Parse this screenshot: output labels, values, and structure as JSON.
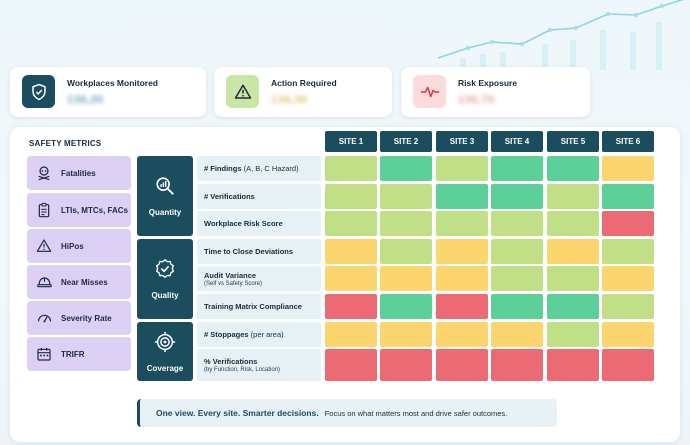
{
  "colors": {
    "dark_teal": "#1b4d5e",
    "lavender": "#ddd0f5",
    "label_bg": "#e6f1f6",
    "status": {
      "G": "#5dcf98",
      "L": "#c0df86",
      "Y": "#fdd56e",
      "R": "#ec6a74"
    }
  },
  "kpis": [
    {
      "title": "Workplaces Monitored",
      "value": "136,30",
      "icon": "shield-check-icon",
      "icon_bg": "#1b4d5e",
      "value_color": "#6aa5b8"
    },
    {
      "title": "Action Required",
      "value": "136,30",
      "icon": "warning-icon",
      "icon_bg": "#c9e6a6",
      "value_color": "#e1c06a"
    },
    {
      "title": "Risk Exposure",
      "value": "136,70",
      "icon": "heartbeat-icon",
      "icon_bg": "#fbdcdc",
      "value_color": "#e79aa0"
    }
  ],
  "panel_title": "SAFETY METRICS",
  "sites": [
    "SITE 1",
    "SITE 2",
    "SITE 3",
    "SITE 4",
    "SITE 5",
    "SITE 6"
  ],
  "metrics": [
    {
      "label": "Fatalities",
      "icon": "skull-crossbones-icon"
    },
    {
      "label": "LTIs, MTCs, FACs",
      "icon": "clipboard-list-icon"
    },
    {
      "label": "HiPos",
      "icon": "warning-icon"
    },
    {
      "label": "Near Misses",
      "icon": "hard-hat-icon"
    },
    {
      "label": "Severity Rate",
      "icon": "gauge-icon"
    },
    {
      "label": "TRIFR",
      "icon": "calendar-icon"
    }
  ],
  "categories": [
    {
      "label": "Quantity",
      "icon": "chart-magnifier-icon"
    },
    {
      "label": "Quality",
      "icon": "badge-check-icon"
    },
    {
      "label": "Coverage",
      "icon": "target-icon"
    }
  ],
  "rows": [
    {
      "title": "# Findings",
      "suffix": " (A, B, C Hazard)",
      "sub": "",
      "status": [
        "L",
        "G",
        "L",
        "G",
        "G",
        "Y"
      ]
    },
    {
      "title": "# Verifications",
      "suffix": "",
      "sub": "",
      "status": [
        "L",
        "L",
        "G",
        "G",
        "L",
        "G"
      ]
    },
    {
      "title": "Workplace Risk Score",
      "suffix": "",
      "sub": "",
      "status": [
        "L",
        "L",
        "L",
        "L",
        "L",
        "R"
      ]
    },
    {
      "title": "Time to Close Deviations",
      "suffix": "",
      "sub": "",
      "status": [
        "Y",
        "L",
        "Y",
        "L",
        "Y",
        "L"
      ]
    },
    {
      "title": "Audit Variance",
      "suffix": "",
      "sub": "(Self vs Safety Score)",
      "status": [
        "Y",
        "Y",
        "Y",
        "L",
        "L",
        "Y"
      ]
    },
    {
      "title": "Training Matrix Compliance",
      "suffix": "",
      "sub": "",
      "status": [
        "R",
        "G",
        "R",
        "G",
        "G",
        "L"
      ]
    },
    {
      "title": "# Stoppages",
      "suffix": " (per area)",
      "sub": "",
      "status": [
        "Y",
        "Y",
        "Y",
        "Y",
        "L",
        "Y"
      ]
    },
    {
      "title": "% Verifications",
      "suffix": "",
      "sub": "(by Function, Risk, Location)",
      "status": [
        "R",
        "R",
        "R",
        "R",
        "R",
        "R"
      ]
    }
  ],
  "footer": {
    "bold": "One view. Every site. Smarter decisions.",
    "text": "Focus on what matters most and drive safer outcomes."
  }
}
